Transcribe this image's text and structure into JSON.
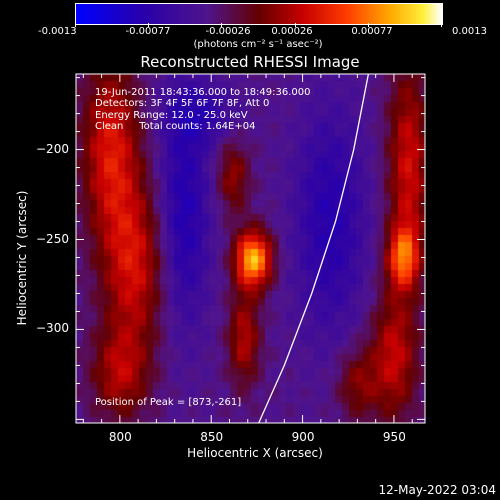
{
  "chart_data": {
    "type": "heatmap",
    "title": "Reconstructed RHESSI Image",
    "xlabel": "Heliocentric X (arcsec)",
    "ylabel": "Heliocentric Y (arcsec)",
    "xlim": [
      776,
      967
    ],
    "ylim": [
      -352,
      -158
    ],
    "xticks": [
      800,
      850,
      900,
      950
    ],
    "yticks": [
      -200,
      -250,
      -300
    ],
    "colorbar": {
      "range": [
        -0.0013,
        0.0013
      ],
      "tick_values": [
        -0.0013,
        -0.00077,
        -0.00026,
        0.00026,
        0.00077,
        0.0013
      ],
      "tick_labels": [
        "-0.0013",
        "-0.00077",
        "-0.00026",
        "0.00026",
        "0.00077",
        "0.0013"
      ],
      "unit_label": "(photons cm⁻² s⁻¹ asec⁻²)"
    },
    "annotations": [
      "19-Jun-2011 18:43:36.000 to 18:49:36.000",
      "Detectors: 3F 4F 5F 6F 7F 8F, Att 0",
      "Energy Range: 12.0 - 25.0 keV",
      "Clean     Total counts: 1.64E+04"
    ],
    "peak_label": "Position of Peak = [873,-261]",
    "peak": {
      "x": 873,
      "y": -261,
      "value": 0.0013
    },
    "limb_curve": {
      "x": [
        876,
        890,
        905,
        918,
        928,
        936
      ],
      "y": [
        -352,
        -320,
        -280,
        -240,
        -200,
        -158
      ]
    },
    "features": [
      {
        "x": 873,
        "y": -261,
        "sx": 7,
        "sy": 11,
        "amp": 0.00135
      },
      {
        "x": 868,
        "y": -305,
        "sx": 6,
        "sy": 18,
        "amp": 0.0006
      },
      {
        "x": 862,
        "y": -215,
        "sx": 6,
        "sy": 14,
        "amp": 0.0005
      },
      {
        "x": 795,
        "y": -200,
        "sx": 11,
        "sy": 35,
        "amp": 0.00075
      },
      {
        "x": 808,
        "y": -265,
        "sx": 12,
        "sy": 32,
        "amp": 0.0007
      },
      {
        "x": 800,
        "y": -325,
        "sx": 11,
        "sy": 18,
        "amp": 0.00055
      },
      {
        "x": 958,
        "y": -210,
        "sx": 8,
        "sy": 40,
        "amp": 0.0007
      },
      {
        "x": 955,
        "y": -260,
        "sx": 6,
        "sy": 12,
        "amp": 0.0009
      },
      {
        "x": 950,
        "y": -315,
        "sx": 9,
        "sy": 25,
        "amp": 0.00065
      },
      {
        "x": 930,
        "y": -330,
        "sx": 8,
        "sy": 14,
        "amp": 0.00045
      },
      {
        "x": 835,
        "y": -235,
        "sx": 10,
        "sy": 45,
        "amp": -0.00055
      },
      {
        "x": 915,
        "y": -240,
        "sx": 14,
        "sy": 45,
        "amp": -0.0005
      },
      {
        "x": 845,
        "y": -180,
        "sx": 14,
        "sy": 12,
        "amp": -0.00035
      }
    ]
  },
  "footer_date": "12-May-2022 03:04"
}
